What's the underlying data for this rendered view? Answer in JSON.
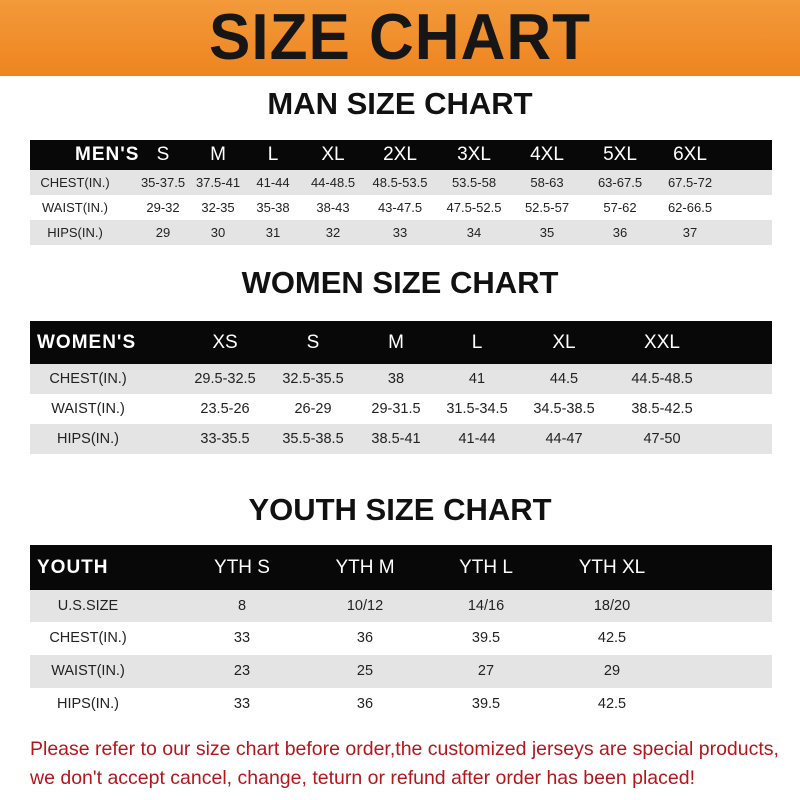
{
  "banner_title": "SIZE CHART",
  "men": {
    "title": "MAN SIZE CHART",
    "header": [
      "MEN'S",
      "S",
      "M",
      "L",
      "XL",
      "2XL",
      "3XL",
      "4XL",
      "5XL",
      "6XL"
    ],
    "rows": [
      [
        "CHEST(IN.)",
        "35-37.5",
        "37.5-41",
        "41-44",
        "44-48.5",
        "48.5-53.5",
        "53.5-58",
        "58-63",
        "63-67.5",
        "67.5-72"
      ],
      [
        "WAIST(IN.)",
        "29-32",
        "32-35",
        "35-38",
        "38-43",
        "43-47.5",
        "47.5-52.5",
        "52.5-57",
        "57-62",
        "62-66.5"
      ],
      [
        "HIPS(IN.)",
        "29",
        "30",
        "31",
        "32",
        "33",
        "34",
        "35",
        "36",
        "37"
      ]
    ]
  },
  "women": {
    "title": "WOMEN SIZE CHART",
    "header": [
      "WOMEN'S",
      "XS",
      "S",
      "M",
      "L",
      "XL",
      "XXL"
    ],
    "rows": [
      [
        "CHEST(IN.)",
        "29.5-32.5",
        "32.5-35.5",
        "38",
        "41",
        "44.5",
        "44.5-48.5"
      ],
      [
        "WAIST(IN.)",
        "23.5-26",
        "26-29",
        "29-31.5",
        "31.5-34.5",
        "34.5-38.5",
        "38.5-42.5"
      ],
      [
        "HIPS(IN.)",
        "33-35.5",
        "35.5-38.5",
        "38.5-41",
        "41-44",
        "44-47",
        "47-50"
      ]
    ]
  },
  "youth": {
    "title": "YOUTH SIZE CHART",
    "header": [
      "YOUTH",
      "YTH S",
      "YTH M",
      "YTH L",
      "YTH XL"
    ],
    "rows": [
      [
        "U.S.SIZE",
        "8",
        "10/12",
        "14/16",
        "18/20"
      ],
      [
        "CHEST(IN.)",
        "33",
        "36",
        "39.5",
        "42.5"
      ],
      [
        "WAIST(IN.)",
        "23",
        "25",
        "27",
        "29"
      ],
      [
        "HIPS(IN.)",
        "33",
        "36",
        "39.5",
        "42.5"
      ]
    ]
  },
  "footer": {
    "line1": "Please refer to our size chart before order,the customized jerseys are special products,",
    "line2": "we don't accept cancel, change, teturn or refund after order has been placed!"
  },
  "colors": {
    "banner": "#ee8420",
    "header_row": "#080808",
    "shaded_row": "#e4e4e4",
    "footer_text": "#b5161c"
  }
}
